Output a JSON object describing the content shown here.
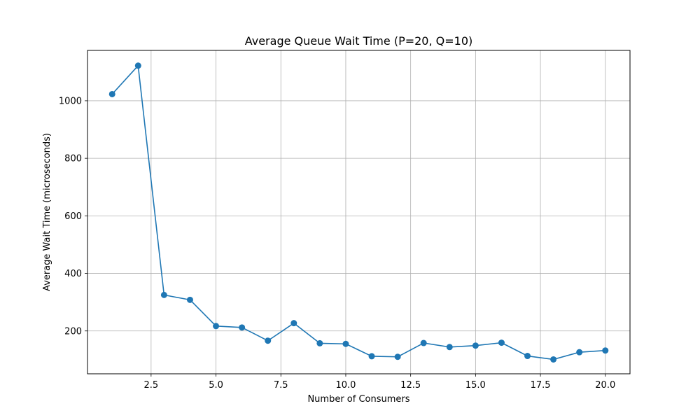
{
  "chart_data": {
    "type": "line",
    "title": "Average Queue Wait Time (P=20, Q=10)",
    "xlabel": "Number of Consumers",
    "ylabel": "Average Wait Time (microseconds)",
    "xlim": [
      0.05,
      20.95
    ],
    "ylim": [
      51,
      1175
    ],
    "x_ticks": [
      2.5,
      5.0,
      7.5,
      10.0,
      12.5,
      15.0,
      17.5,
      20.0
    ],
    "x_tick_labels": [
      "2.5",
      "5.0",
      "7.5",
      "10.0",
      "12.5",
      "15.0",
      "17.5",
      "20.0"
    ],
    "y_ticks": [
      200,
      400,
      600,
      800,
      1000
    ],
    "y_tick_labels": [
      "200",
      "400",
      "600",
      "800",
      "1000"
    ],
    "grid": true,
    "series": [
      {
        "color": "#1f77b4",
        "marker": "circle",
        "x": [
          1,
          2,
          3,
          4,
          5,
          6,
          7,
          8,
          9,
          10,
          11,
          12,
          13,
          14,
          15,
          16,
          17,
          18,
          19,
          20
        ],
        "y": [
          1023,
          1122,
          325,
          308,
          217,
          212,
          166,
          227,
          157,
          155,
          112,
          110,
          158,
          144,
          149,
          159,
          113,
          101,
          126,
          132
        ]
      }
    ]
  }
}
